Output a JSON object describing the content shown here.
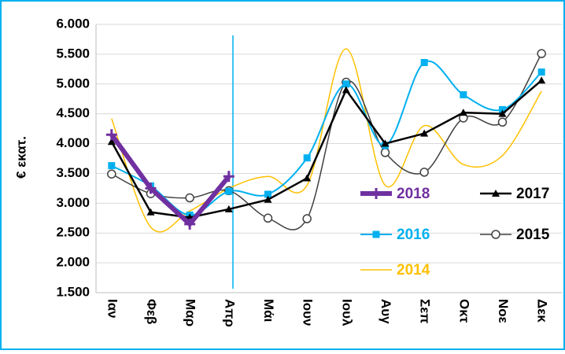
{
  "chart_data": {
    "type": "line",
    "y_label": "€ εκατ.",
    "categories": [
      "Ιαν",
      "Φεβ",
      "Μαρ",
      "Απρ",
      "Μάι",
      "Ιουν",
      "Ιουλ",
      "Αυγ",
      "Σεπ",
      "Οκτ",
      "Νοε",
      "Δεκ"
    ],
    "ylim": [
      1500,
      6000
    ],
    "yticks": [
      {
        "value": 1500,
        "label": "1.500"
      },
      {
        "value": 2000,
        "label": "2.000"
      },
      {
        "value": 2500,
        "label": "2.500"
      },
      {
        "value": 3000,
        "label": "3.000"
      },
      {
        "value": 3500,
        "label": "3.500"
      },
      {
        "value": 4000,
        "label": "4.000"
      },
      {
        "value": 4500,
        "label": "4.500"
      },
      {
        "value": 5000,
        "label": "5.000"
      },
      {
        "value": 5500,
        "label": "5.500"
      },
      {
        "value": 6000,
        "label": "6.000"
      }
    ],
    "grid": true,
    "legend": "inside-bottom-right",
    "series": [
      {
        "name": "2018",
        "color": "#7030a0",
        "marker": "plus",
        "smooth": false,
        "width": 6,
        "values": [
          4150,
          3250,
          2650,
          3450,
          null,
          null,
          null,
          null,
          null,
          null,
          null,
          null
        ]
      },
      {
        "name": "2017",
        "color": "#000000",
        "marker": "triangle",
        "smooth": false,
        "width": 2.5,
        "values": [
          4030,
          2850,
          2760,
          2900,
          3060,
          3420,
          4900,
          4000,
          4170,
          4520,
          4500,
          5060
        ]
      },
      {
        "name": "2016",
        "color": "#00b0f0",
        "marker": "square",
        "smooth": true,
        "width": 2,
        "values": [
          3630,
          3290,
          2800,
          3200,
          3150,
          3760,
          5000,
          3970,
          5360,
          4820,
          4570,
          5200
        ]
      },
      {
        "name": "2015",
        "color": "#404040",
        "marker": "circle",
        "smooth": true,
        "width": 1.5,
        "values": [
          3490,
          3160,
          3090,
          3210,
          2750,
          2740,
          5030,
          3850,
          3520,
          4430,
          4360,
          5510
        ]
      },
      {
        "name": "2014",
        "color": "#ffc000",
        "marker": null,
        "smooth": true,
        "width": 1.5,
        "values": [
          4420,
          2600,
          2870,
          3250,
          3450,
          3300,
          5590,
          3300,
          4300,
          3650,
          3800,
          4880
        ]
      }
    ]
  }
}
